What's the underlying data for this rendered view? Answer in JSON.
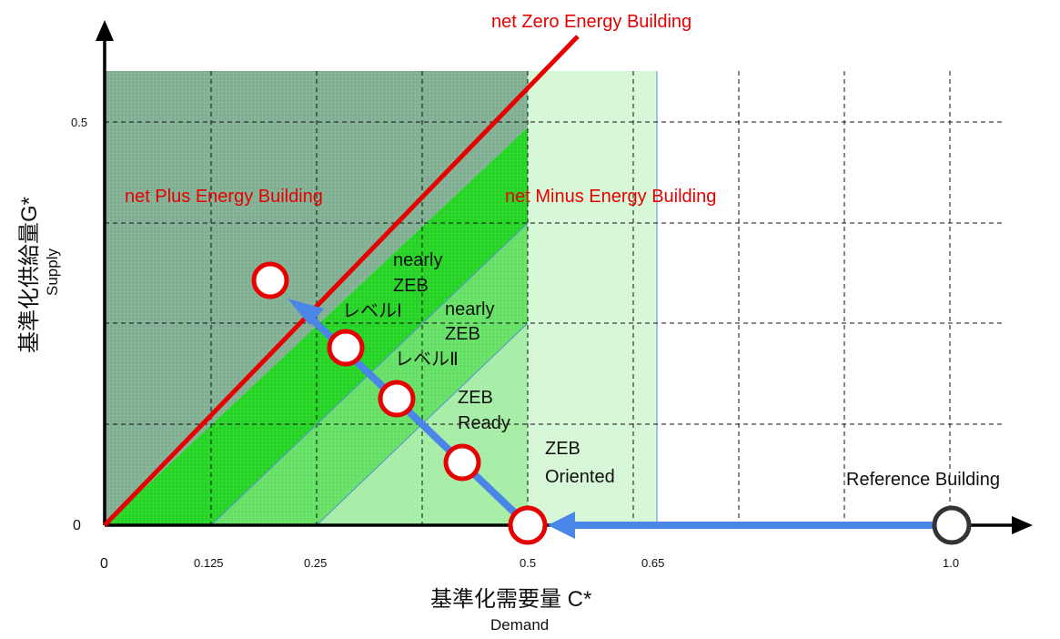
{
  "diagram": {
    "title_top": "net Zero Energy Building",
    "regions": {
      "plus": "net Plus Energy Building",
      "minus": "net Minus Energy Building"
    },
    "zones": {
      "nearly_zeb_1": [
        "nearly",
        "ZEB",
        "レベルⅠ"
      ],
      "nearly_zeb_2": [
        "nearly",
        "ZEB",
        "レベルⅡ"
      ],
      "zeb_ready": [
        "ZEB",
        "Ready"
      ],
      "zeb_oriented": [
        "ZEB",
        "Oriented"
      ]
    },
    "reference_label": "Reference Building",
    "x_axis": {
      "title": "基準化需要量 C*",
      "subtitle": "Demand",
      "origin": "0",
      "ticks": [
        "0.125",
        "0.25",
        "0.5",
        "0.65",
        "1.0"
      ]
    },
    "y_axis": {
      "title": "基準化供給量G*",
      "subtitle": "Supply",
      "origin": "0",
      "tick": "0.5"
    },
    "colors": {
      "zero_line": "#e60000",
      "arrow": "#4a86e8",
      "plus_region": "#7fae93",
      "green_strong": "#22d322",
      "green_mid": "#63e063",
      "green_light": "#a5eda5",
      "green_pale": "#d6f7d6",
      "marker_stroke": "#e60000",
      "reference_stroke": "#333333"
    }
  }
}
